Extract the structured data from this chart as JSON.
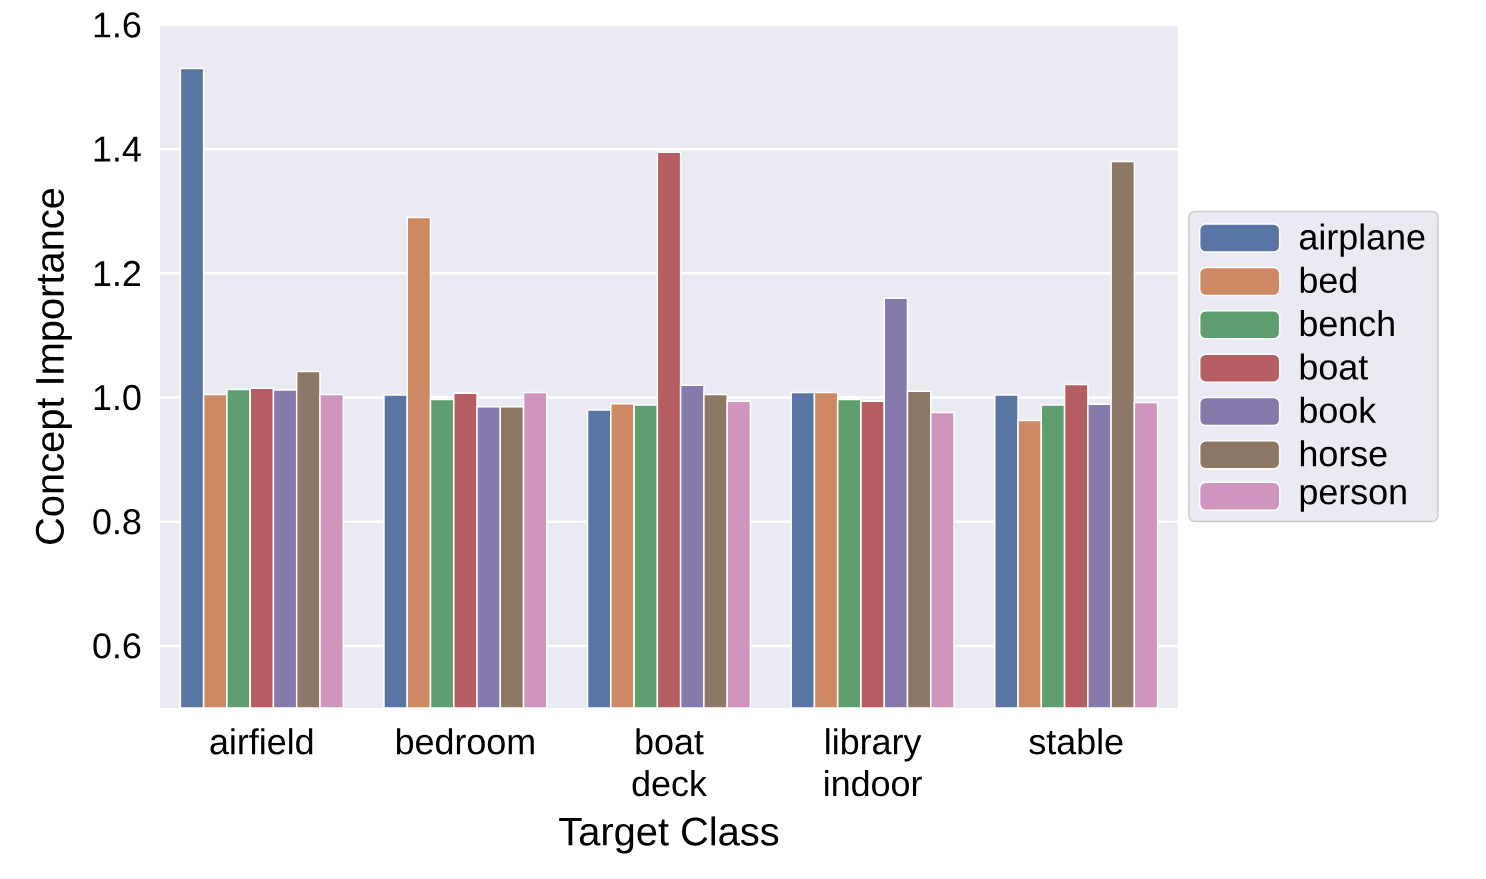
{
  "chart_data": {
    "type": "bar",
    "xlabel": "Target Class",
    "ylabel": "Concept Importance",
    "categories": [
      "airfield",
      "bedroom",
      "boat deck",
      "library indoor",
      "stable"
    ],
    "series": [
      {
        "name": "airplane",
        "color": "#5975a4",
        "values": [
          1.53,
          1.004,
          0.98,
          1.008,
          1.004
        ]
      },
      {
        "name": "bed",
        "color": "#cc8963",
        "values": [
          1.005,
          1.29,
          0.99,
          1.008,
          0.963
        ]
      },
      {
        "name": "bench",
        "color": "#5f9e6e",
        "values": [
          1.013,
          0.997,
          0.988,
          0.997,
          0.988
        ]
      },
      {
        "name": "boat",
        "color": "#b55d60",
        "values": [
          1.015,
          1.007,
          1.395,
          0.994,
          1.021
        ]
      },
      {
        "name": "book",
        "color": "#857aab",
        "values": [
          1.012,
          0.985,
          1.02,
          1.16,
          0.989
        ]
      },
      {
        "name": "horse",
        "color": "#8d7866",
        "values": [
          1.042,
          0.985,
          1.005,
          1.01,
          1.38
        ]
      },
      {
        "name": "person",
        "color": "#d095bf",
        "values": [
          1.005,
          1.008,
          0.994,
          0.976,
          0.992
        ]
      }
    ],
    "ylim": [
      0.5,
      1.6
    ],
    "yticks": [
      0.6,
      0.8,
      {
        "value": 1.0,
        "label": "1.0"
      },
      1.2,
      1.4,
      1.6
    ],
    "grid": "y",
    "legend": "right"
  }
}
